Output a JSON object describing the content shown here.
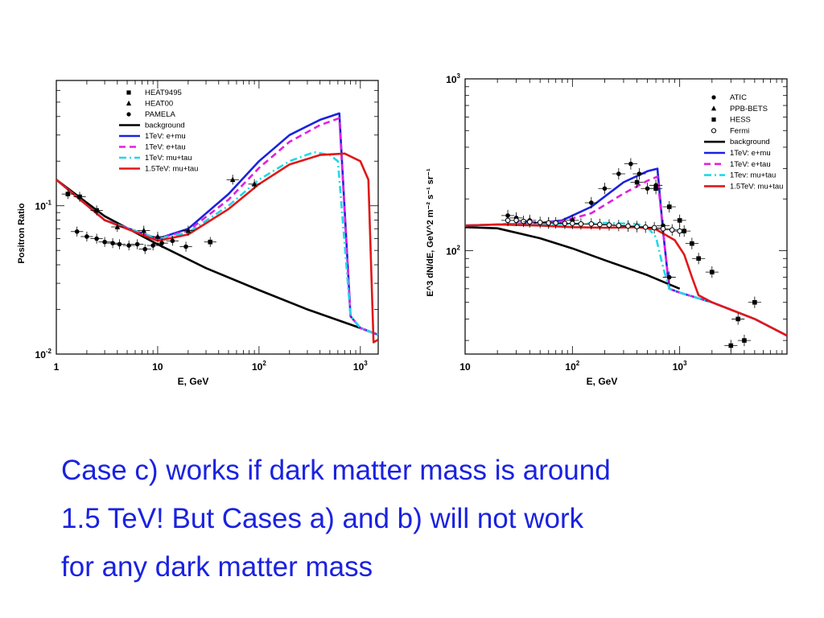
{
  "slide": {
    "caption_lines": [
      "Case c) works if dark matter mass is around",
      "1.5 TeV!  But Cases a) and b) will not work",
      "for any dark matter mass"
    ]
  },
  "chart_data": [
    {
      "type": "line",
      "title": "",
      "xlabel": "E,  GeV",
      "ylabel": "Positron   Ratio",
      "xscale": "log",
      "yscale": "log",
      "xlim": [
        1,
        1500
      ],
      "ylim": [
        0.01,
        0.7
      ],
      "x_ticks": [
        {
          "v": 1,
          "base": "1",
          "sup": ""
        },
        {
          "v": 10,
          "base": "10",
          "sup": ""
        },
        {
          "v": 100,
          "base": "10",
          "sup": "2"
        },
        {
          "v": 1000,
          "base": "10",
          "sup": "3"
        }
      ],
      "y_ticks": [
        {
          "v": 0.01,
          "base": "10",
          "sup": "-2"
        },
        {
          "v": 0.1,
          "base": "10",
          "sup": "-1"
        }
      ],
      "legend_position": "top-left",
      "legend": [
        {
          "label": "HEAT9495",
          "kind": "marker",
          "shape": "square",
          "color": "#000000"
        },
        {
          "label": "HEAT00",
          "kind": "marker",
          "shape": "triangle",
          "color": "#000000"
        },
        {
          "label": "PAMELA",
          "kind": "marker",
          "shape": "circle",
          "color": "#000000"
        },
        {
          "label": "background",
          "kind": "line",
          "dash": "solid",
          "color": "#000000"
        },
        {
          "label": "1TeV: e+mu",
          "kind": "line",
          "dash": "solid",
          "color": "#1a22e0"
        },
        {
          "label": "1TeV: e+tau",
          "kind": "line",
          "dash": "dashed",
          "color": "#e020e0"
        },
        {
          "label": "1TeV: mu+tau",
          "kind": "line",
          "dash": "dashdot",
          "color": "#20d8e8"
        },
        {
          "label": "1.5TeV: mu+tau",
          "kind": "line",
          "dash": "solid",
          "color": "#e01818"
        }
      ],
      "series": [
        {
          "name": "background",
          "color": "#000000",
          "dash": "solid",
          "points": [
            [
              1,
              0.15
            ],
            [
              3,
              0.085
            ],
            [
              10,
              0.055
            ],
            [
              30,
              0.038
            ],
            [
              100,
              0.027
            ],
            [
              300,
              0.02
            ],
            [
              1000,
              0.015
            ],
            [
              1500,
              0.0135
            ]
          ]
        },
        {
          "name": "1TeV: e+mu",
          "color": "#1a22e0",
          "dash": "solid",
          "points": [
            [
              1,
              0.15
            ],
            [
              3,
              0.08
            ],
            [
              10,
              0.06
            ],
            [
              20,
              0.07
            ],
            [
              50,
              0.12
            ],
            [
              100,
              0.2
            ],
            [
              200,
              0.3
            ],
            [
              400,
              0.38
            ],
            [
              620,
              0.42
            ],
            [
              800,
              0.018
            ],
            [
              1000,
              0.015
            ],
            [
              1500,
              0.0135
            ]
          ]
        },
        {
          "name": "1TeV: e+tau",
          "color": "#e020e0",
          "dash": "dashed",
          "points": [
            [
              1,
              0.15
            ],
            [
              3,
              0.08
            ],
            [
              10,
              0.06
            ],
            [
              20,
              0.068
            ],
            [
              50,
              0.11
            ],
            [
              100,
              0.18
            ],
            [
              200,
              0.27
            ],
            [
              400,
              0.35
            ],
            [
              620,
              0.39
            ],
            [
              800,
              0.018
            ],
            [
              1000,
              0.015
            ],
            [
              1500,
              0.0135
            ]
          ]
        },
        {
          "name": "1TeV: mu+tau",
          "color": "#20d8e8",
          "dash": "dashdot",
          "points": [
            [
              1,
              0.15
            ],
            [
              3,
              0.08
            ],
            [
              10,
              0.06
            ],
            [
              20,
              0.066
            ],
            [
              50,
              0.1
            ],
            [
              100,
              0.15
            ],
            [
              200,
              0.2
            ],
            [
              350,
              0.23
            ],
            [
              500,
              0.22
            ],
            [
              600,
              0.2
            ],
            [
              800,
              0.018
            ],
            [
              1000,
              0.015
            ],
            [
              1500,
              0.0135
            ]
          ]
        },
        {
          "name": "1.5TeV: mu+tau",
          "color": "#e01818",
          "dash": "solid",
          "points": [
            [
              1,
              0.15
            ],
            [
              3,
              0.08
            ],
            [
              10,
              0.058
            ],
            [
              20,
              0.064
            ],
            [
              50,
              0.095
            ],
            [
              100,
              0.14
            ],
            [
              200,
              0.19
            ],
            [
              400,
              0.22
            ],
            [
              700,
              0.225
            ],
            [
              1000,
              0.2
            ],
            [
              1200,
              0.15
            ],
            [
              1350,
              0.012
            ],
            [
              1500,
              0.0125
            ]
          ]
        }
      ],
      "data_points": [
        {
          "name": "HEAT9495",
          "marker": "square",
          "points": [
            [
              1.3,
              0.12
            ],
            [
              1.7,
              0.115
            ],
            [
              2.5,
              0.093
            ],
            [
              33,
              0.057
            ]
          ]
        },
        {
          "name": "PAMELA",
          "marker": "circle",
          "points": [
            [
              1.6,
              0.067
            ],
            [
              2,
              0.062
            ],
            [
              2.5,
              0.06
            ],
            [
              3,
              0.057
            ],
            [
              3.6,
              0.056
            ],
            [
              4.2,
              0.055
            ],
            [
              5.2,
              0.054
            ],
            [
              6.3,
              0.055
            ],
            [
              7.5,
              0.051
            ],
            [
              9,
              0.054
            ],
            [
              11,
              0.056
            ],
            [
              14,
              0.058
            ],
            [
              19,
              0.053
            ]
          ]
        },
        {
          "name": "HEAT00",
          "marker": "triangle",
          "points": [
            [
              4,
              0.072
            ],
            [
              7.3,
              0.068
            ],
            [
              10,
              0.062
            ],
            [
              20,
              0.068
            ],
            [
              55,
              0.15
            ],
            [
              90,
              0.14
            ]
          ]
        }
      ]
    },
    {
      "type": "line",
      "title": "",
      "xlabel": "E,  GeV",
      "ylabel": "E^3 dN/dE, GeV^2 m⁻² s⁻¹ sr⁻¹",
      "xscale": "log",
      "yscale": "log",
      "xlim": [
        10,
        10000
      ],
      "ylim": [
        25,
        1000
      ],
      "x_ticks": [
        {
          "v": 10,
          "base": "10",
          "sup": ""
        },
        {
          "v": 100,
          "base": "10",
          "sup": "2"
        },
        {
          "v": 1000,
          "base": "10",
          "sup": "3"
        }
      ],
      "y_ticks": [
        {
          "v": 100,
          "base": "10",
          "sup": "2"
        },
        {
          "v": 1000,
          "base": "10",
          "sup": "3"
        }
      ],
      "legend_position": "top-right",
      "legend": [
        {
          "label": "ATIC",
          "kind": "marker",
          "shape": "circle",
          "color": "#000000"
        },
        {
          "label": "PPB-BETS",
          "kind": "marker",
          "shape": "triangle",
          "color": "#000000"
        },
        {
          "label": "HESS",
          "kind": "marker",
          "shape": "square",
          "color": "#000000"
        },
        {
          "label": "Fermi",
          "kind": "marker",
          "shape": "open-circle",
          "color": "#000000"
        },
        {
          "label": "background",
          "kind": "line",
          "dash": "solid",
          "color": "#000000"
        },
        {
          "label": "1TeV: e+mu",
          "kind": "line",
          "dash": "solid",
          "color": "#1a22e0"
        },
        {
          "label": "1TeV: e+tau",
          "kind": "line",
          "dash": "dashed",
          "color": "#e020e0"
        },
        {
          "label": "1Tev: mu+tau",
          "kind": "line",
          "dash": "dashdot",
          "color": "#20d8e8"
        },
        {
          "label": "1.5TeV: mu+tau",
          "kind": "line",
          "dash": "solid",
          "color": "#e01818"
        }
      ],
      "series": [
        {
          "name": "background",
          "color": "#000000",
          "dash": "solid",
          "points": [
            [
              10,
              137
            ],
            [
              20,
              135
            ],
            [
              50,
              118
            ],
            [
              100,
              103
            ],
            [
              200,
              88
            ],
            [
              500,
              72
            ],
            [
              1000,
              60
            ]
          ]
        },
        {
          "name": "1TeV: e+mu",
          "color": "#1a22e0",
          "dash": "solid",
          "points": [
            [
              10,
              140
            ],
            [
              20,
              142
            ],
            [
              50,
              145
            ],
            [
              80,
              150
            ],
            [
              150,
              180
            ],
            [
              300,
              250
            ],
            [
              500,
              290
            ],
            [
              620,
              300
            ],
            [
              700,
              130
            ],
            [
              800,
              60
            ],
            [
              1000,
              57
            ],
            [
              2000,
              50
            ],
            [
              5000,
              40
            ],
            [
              10000,
              32
            ]
          ]
        },
        {
          "name": "1TeV: e+tau",
          "color": "#e020e0",
          "dash": "dashed",
          "points": [
            [
              10,
              140
            ],
            [
              20,
              142
            ],
            [
              50,
              145
            ],
            [
              80,
              148
            ],
            [
              150,
              165
            ],
            [
              300,
              215
            ],
            [
              500,
              255
            ],
            [
              620,
              270
            ],
            [
              700,
              130
            ],
            [
              800,
              60
            ],
            [
              1000,
              57
            ],
            [
              2000,
              50
            ],
            [
              5000,
              40
            ],
            [
              10000,
              32
            ]
          ]
        },
        {
          "name": "1Tev: mu+tau",
          "color": "#20d8e8",
          "dash": "dashdot",
          "points": [
            [
              10,
              140
            ],
            [
              20,
              142
            ],
            [
              50,
              143
            ],
            [
              100,
              143
            ],
            [
              200,
              145
            ],
            [
              400,
              143
            ],
            [
              500,
              137
            ],
            [
              600,
              120
            ],
            [
              700,
              80
            ],
            [
              800,
              60
            ],
            [
              1000,
              57
            ],
            [
              2000,
              50
            ],
            [
              5000,
              40
            ],
            [
              10000,
              32
            ]
          ]
        },
        {
          "name": "1.5TeV: mu+tau",
          "color": "#e01818",
          "dash": "solid",
          "points": [
            [
              10,
              140
            ],
            [
              20,
              142
            ],
            [
              50,
              140
            ],
            [
              100,
              137
            ],
            [
              200,
              136
            ],
            [
              400,
              137
            ],
            [
              600,
              133
            ],
            [
              900,
              115
            ],
            [
              1100,
              95
            ],
            [
              1300,
              70
            ],
            [
              1500,
              55
            ],
            [
              2000,
              50
            ],
            [
              5000,
              40
            ],
            [
              10000,
              32
            ]
          ]
        }
      ],
      "data_points": [
        {
          "name": "ATIC",
          "marker": "circle",
          "points": [
            [
              25,
              160
            ],
            [
              30,
              155
            ],
            [
              40,
              150
            ],
            [
              60,
              145
            ],
            [
              100,
              150
            ],
            [
              150,
              190
            ],
            [
              200,
              230
            ],
            [
              270,
              280
            ],
            [
              350,
              320
            ],
            [
              420,
              280
            ],
            [
              500,
              230
            ],
            [
              600,
              240
            ],
            [
              700,
              140
            ],
            [
              800,
              70
            ]
          ]
        },
        {
          "name": "HESS",
          "marker": "square",
          "points": [
            [
              400,
              250
            ],
            [
              600,
              230
            ],
            [
              800,
              180
            ],
            [
              1000,
              150
            ],
            [
              1100,
              130
            ],
            [
              1300,
              110
            ],
            [
              1500,
              90
            ],
            [
              2000,
              75
            ],
            [
              3000,
              28
            ],
            [
              3500,
              40
            ],
            [
              4000,
              30
            ],
            [
              5000,
              50
            ]
          ]
        },
        {
          "name": "Fermi",
          "marker": "open-circle",
          "points": [
            [
              25,
              150
            ],
            [
              30,
              150
            ],
            [
              35,
              148
            ],
            [
              40,
              147
            ],
            [
              50,
              146
            ],
            [
              60,
              145
            ],
            [
              70,
              145
            ],
            [
              85,
              144
            ],
            [
              100,
              144
            ],
            [
              120,
              143
            ],
            [
              150,
              143
            ],
            [
              180,
              142
            ],
            [
              220,
              141
            ],
            [
              270,
              140
            ],
            [
              330,
              139
            ],
            [
              400,
              138
            ],
            [
              480,
              137
            ],
            [
              580,
              136
            ],
            [
              700,
              134
            ],
            [
              850,
              132
            ],
            [
              1000,
              130
            ]
          ]
        }
      ]
    }
  ]
}
